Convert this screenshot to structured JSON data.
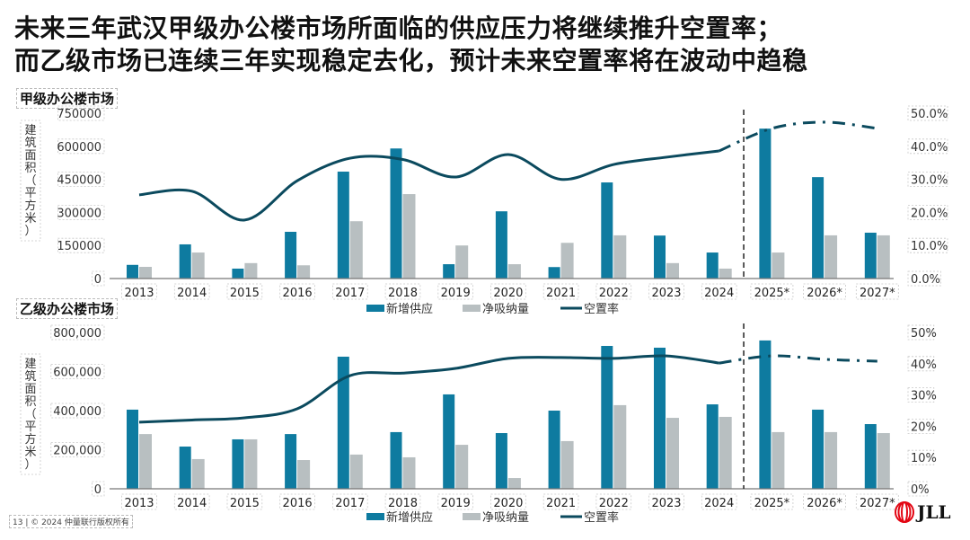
{
  "title": {
    "line1": "未来三年武汉甲级办公楼市场所面临的供应压力将继续推升空置率；",
    "line2": "而乙级市场已连续三年实现稳定去化，预计未来空置率将在波动中趋稳"
  },
  "footer": "13  |  © 2024 仲量联行版权所有",
  "logo": "JLL",
  "colors": {
    "new_supply": "#0e7ba0",
    "net_absorption": "#b8bfc1",
    "vacancy": "#0b4a5e",
    "logo_red": "#e30613"
  },
  "chart_data": [
    {
      "type": "bar",
      "section_title": "甲级办公楼市场",
      "ylabel": "建筑面积（平方米）",
      "categories": [
        "2013",
        "2014",
        "2015",
        "2016",
        "2017",
        "2018",
        "2019",
        "2020",
        "2021",
        "2022",
        "2023",
        "2024",
        "2025*",
        "2026*",
        "2027*"
      ],
      "forecast_start_index": 12,
      "ylim": [
        0,
        750000
      ],
      "y2lim": [
        0,
        50
      ],
      "yticks": [
        "0",
        "150000",
        "300000",
        "450000",
        "600000",
        "750000"
      ],
      "y2ticks": [
        "0.0%",
        "10.0%",
        "20.0%",
        "30.0%",
        "40.0%",
        "50.0%"
      ],
      "legend": [
        "新增供应",
        "净吸纳量",
        "空置率"
      ],
      "legend_position": "bottom",
      "series": [
        {
          "name": "新增供应",
          "kind": "bar",
          "values": [
            62000,
            155000,
            45000,
            212000,
            485000,
            590000,
            65000,
            305000,
            52000,
            436000,
            195000,
            118000,
            680000,
            460000,
            208000
          ]
        },
        {
          "name": "净吸纳量",
          "kind": "bar",
          "values": [
            53000,
            118000,
            70000,
            60000,
            260000,
            383000,
            150000,
            65000,
            162000,
            196000,
            70000,
            45000,
            118000,
            196000,
            196000
          ]
        },
        {
          "name": "空置率",
          "kind": "line",
          "axis": "right",
          "unit": "%",
          "values": [
            25.3,
            26.4,
            17.7,
            29.6,
            36.4,
            36.0,
            30.7,
            37.5,
            30.0,
            34.5,
            36.7,
            38.6,
            45.4,
            47.3,
            45.4
          ]
        }
      ]
    },
    {
      "type": "bar",
      "section_title": "乙级办公楼市场",
      "ylabel": "建筑面积（平方米）",
      "categories": [
        "2013",
        "2014",
        "2015",
        "2016",
        "2017",
        "2018",
        "2019",
        "2020",
        "2021",
        "2022",
        "2023",
        "2024",
        "2025*",
        "2026*",
        "2027*"
      ],
      "forecast_start_index": 12,
      "ylim": [
        0,
        800000
      ],
      "y2lim": [
        0,
        50
      ],
      "yticks": [
        "0",
        "200,000",
        "400,000",
        "600,000",
        "800,000"
      ],
      "y2ticks": [
        "0%",
        "10%",
        "20%",
        "30%",
        "40%",
        "50%"
      ],
      "legend": [
        "新增供应",
        "净吸纳量",
        "空置率"
      ],
      "legend_position": "bottom",
      "series": [
        {
          "name": "新增供应",
          "kind": "bar",
          "values": [
            405000,
            216000,
            253000,
            280000,
            676000,
            290000,
            483000,
            285000,
            400000,
            731000,
            722000,
            432000,
            759000,
            405000,
            331000
          ]
        },
        {
          "name": "净吸纳量",
          "kind": "bar",
          "values": [
            280000,
            152000,
            253000,
            147000,
            175000,
            161000,
            225000,
            55000,
            244000,
            428000,
            363000,
            368000,
            290000,
            290000,
            285000
          ]
        },
        {
          "name": "空置率",
          "kind": "line",
          "axis": "right",
          "unit": "%",
          "values": [
            21.3,
            22.0,
            22.7,
            25.6,
            36.2,
            37.0,
            38.5,
            41.7,
            42.0,
            41.7,
            42.5,
            40.2,
            42.5,
            41.4,
            40.8
          ]
        }
      ]
    }
  ]
}
